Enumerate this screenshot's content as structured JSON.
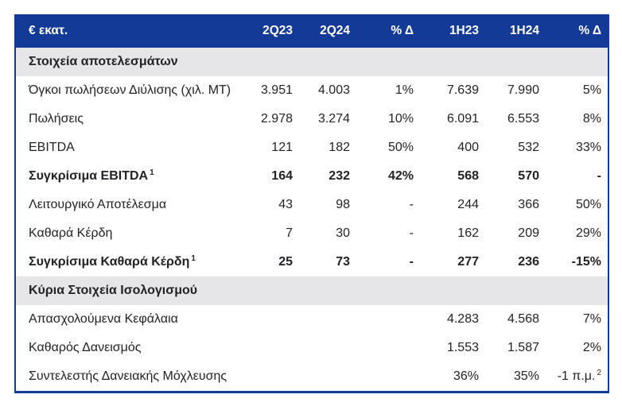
{
  "colors": {
    "brand_blue": "#143A97",
    "header_text": "#FFFFFF",
    "section_band": "#E6E6E9",
    "body_text": "#232227",
    "page_bg": "#FFFFFF"
  },
  "table": {
    "header": {
      "label": "€ εκατ.",
      "columns": [
        "2Q23",
        "2Q24",
        "% Δ",
        "1H23",
        "1H24",
        "% Δ"
      ]
    },
    "sections": [
      {
        "title": "Στοιχεία αποτελεσμάτων",
        "rows": [
          {
            "label": "Όγκοι πωλήσεων Διύλισης (χιλ. MT)",
            "bold": false,
            "values": [
              "3.951",
              "4.003",
              "1%",
              "7.639",
              "7.990",
              "5%"
            ]
          },
          {
            "label": "Πωλήσεις",
            "bold": false,
            "values": [
              "2.978",
              "3.274",
              "10%",
              "6.091",
              "6.553",
              "8%"
            ]
          },
          {
            "label": "EBITDA",
            "bold": false,
            "values": [
              "121",
              "182",
              "50%",
              "400",
              "532",
              "33%"
            ]
          },
          {
            "label": "Συγκρίσιμα EBITDA",
            "label_sup": "1",
            "bold": true,
            "values": [
              "164",
              "232",
              "42%",
              "568",
              "570",
              "-"
            ]
          },
          {
            "label": "Λειτουργικό Αποτέλεσμα",
            "bold": false,
            "values": [
              "43",
              "98",
              "-",
              "244",
              "366",
              "50%"
            ]
          },
          {
            "label": "Καθαρά Κέρδη",
            "bold": false,
            "values": [
              "7",
              "30",
              "-",
              "162",
              "209",
              "29%"
            ]
          },
          {
            "label": "Συγκρίσιμα Καθαρά Κέρδη",
            "label_sup": "1",
            "bold": true,
            "values": [
              "25",
              "73",
              "-",
              "277",
              "236",
              "-15%"
            ]
          }
        ]
      },
      {
        "title": "Κύρια Στοιχεία Ισολογισμού",
        "rows": [
          {
            "label": "Απασχολούμενα Κεφάλαια",
            "bold": false,
            "values": [
              "",
              "",
              "",
              "4.283",
              "4.568",
              "7%"
            ]
          },
          {
            "label": "Καθαρός Δανεισμός",
            "bold": false,
            "values": [
              "",
              "",
              "",
              "1.553",
              "1.587",
              "2%"
            ]
          },
          {
            "label": "Συντελεστής Δανειακής Μόχλευσης",
            "bold": false,
            "values": [
              "",
              "",
              "",
              "36%",
              "35%",
              {
                "text": "-1 π.μ.",
                "sup": "2"
              }
            ]
          }
        ]
      }
    ]
  }
}
